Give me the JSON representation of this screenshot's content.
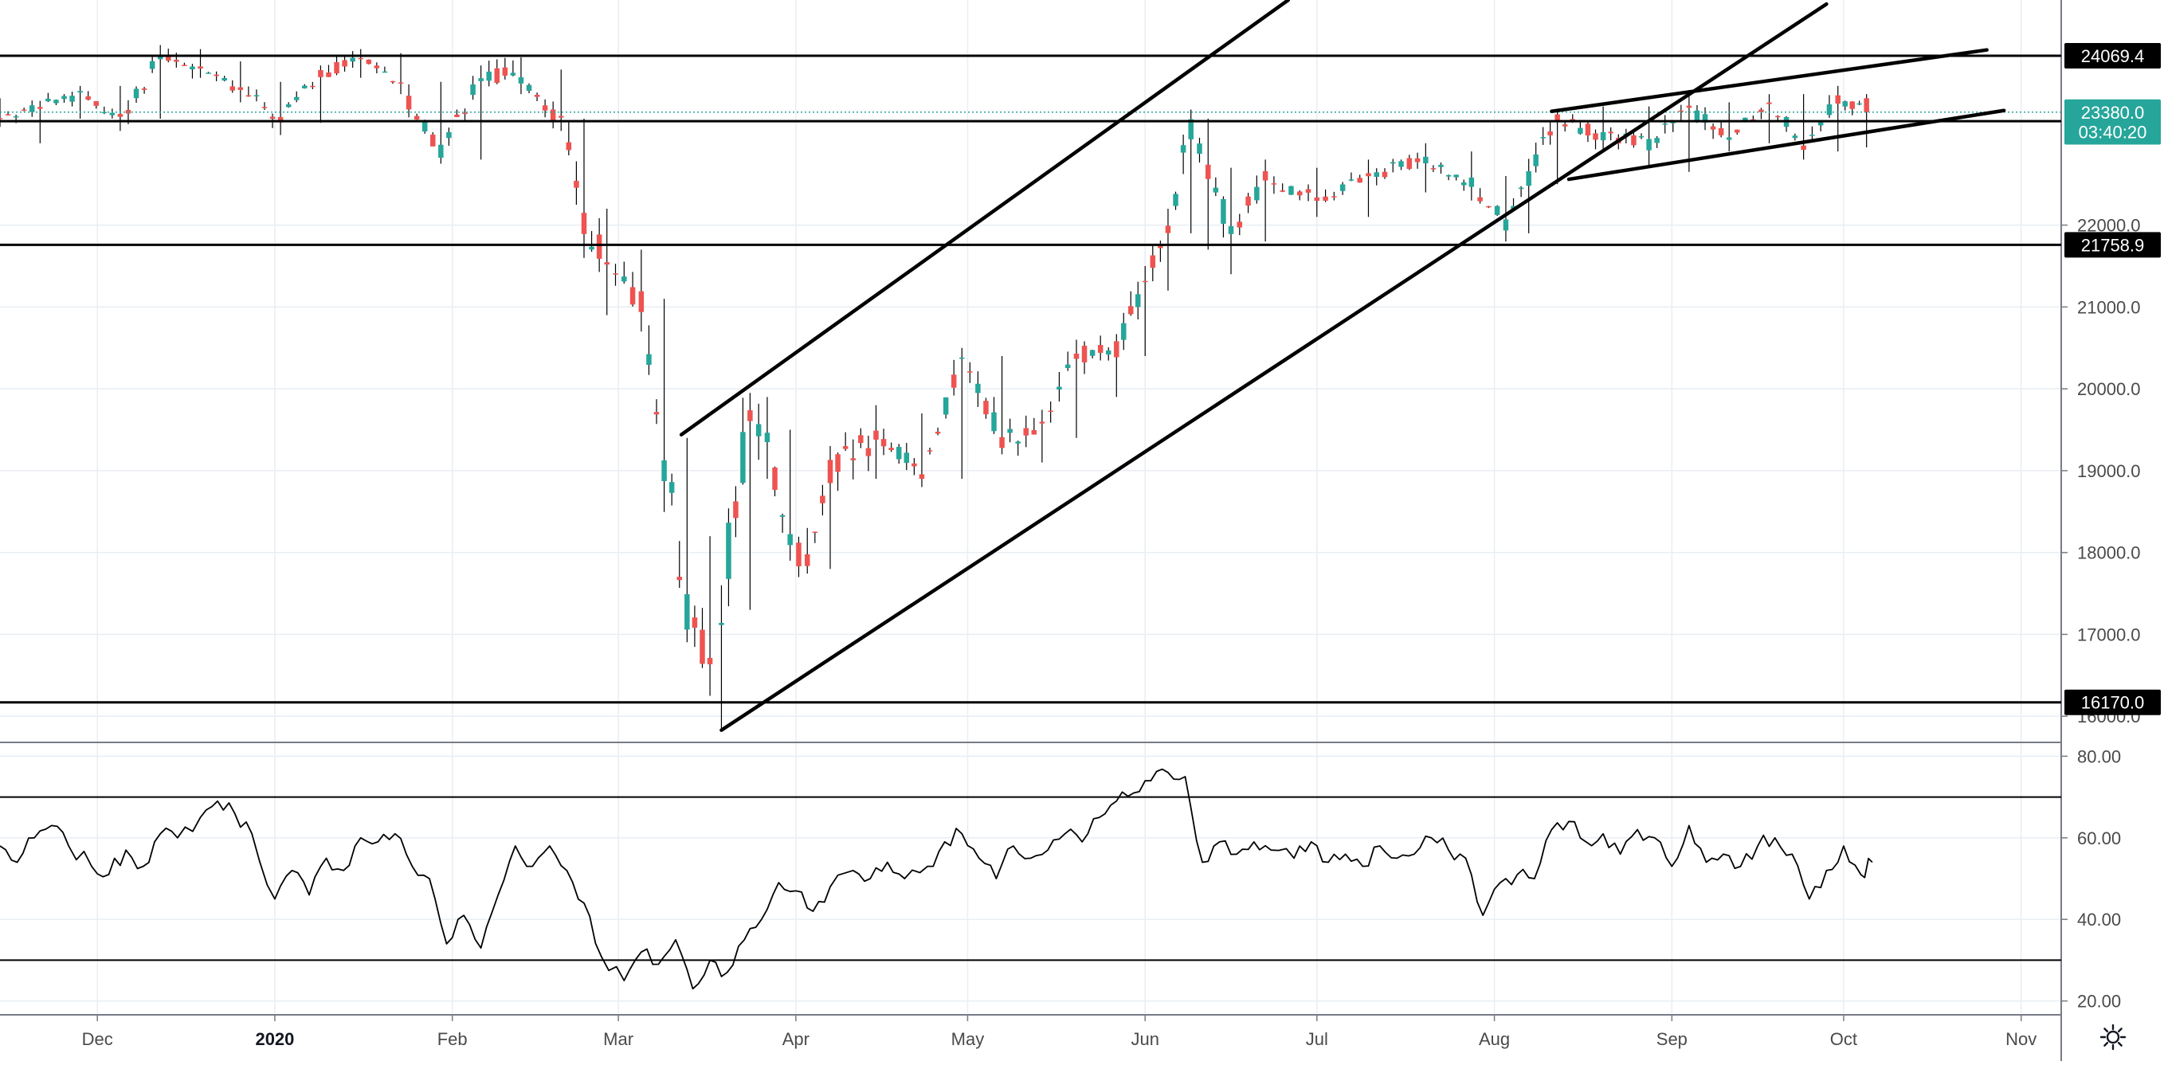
{
  "chart_data": [
    {
      "type": "candlestick",
      "x_range": [
        "2019-11-14",
        "2020-11-08"
      ],
      "ylim": [
        15700,
        24750
      ],
      "y_ticks": [
        "16000.0",
        "17000.0",
        "18000.0",
        "19000.0",
        "20000.0",
        "21000.0",
        "22000.0"
      ],
      "x_ticks": [
        {
          "label": "Dec",
          "date": "2019-12-01",
          "bold": false
        },
        {
          "label": "2020",
          "date": "2020-01-01",
          "bold": true
        },
        {
          "label": "Feb",
          "date": "2020-02-01",
          "bold": false
        },
        {
          "label": "Mar",
          "date": "2020-03-01",
          "bold": false
        },
        {
          "label": "Apr",
          "date": "2020-04-01",
          "bold": false
        },
        {
          "label": "May",
          "date": "2020-05-01",
          "bold": false
        },
        {
          "label": "Jun",
          "date": "2020-06-01",
          "bold": false
        },
        {
          "label": "Jul",
          "date": "2020-07-01",
          "bold": false
        },
        {
          "label": "Aug",
          "date": "2020-08-01",
          "bold": false
        },
        {
          "label": "Sep",
          "date": "2020-09-01",
          "bold": false
        },
        {
          "label": "Oct",
          "date": "2020-10-01",
          "bold": false
        },
        {
          "label": "Nov",
          "date": "2020-11-01",
          "bold": false
        }
      ],
      "grid": true,
      "colors": {
        "up": "#26a69a",
        "down": "#ef5350",
        "level_line": "#000000",
        "current_price": "#26a69a"
      },
      "price_labels": [
        {
          "text": "24069.4",
          "value": 24069.4,
          "style": "dark"
        },
        {
          "text": "23380.0",
          "value": 23380.0,
          "style": "teal"
        },
        {
          "text": "03:40:20",
          "value": 23140,
          "style": "teal"
        },
        {
          "text": "21758.9",
          "value": 21758.9,
          "style": "dark"
        },
        {
          "text": "16170.0",
          "value": 16170.0,
          "style": "dark"
        }
      ],
      "current_price": 23380.0,
      "horizontal_levels": [
        24069.4,
        23270,
        21758.9,
        16170.0
      ],
      "trendlines": [
        {
          "from": {
            "date": "2020-03-12",
            "value": 19440
          },
          "to": {
            "date": "2020-06-26",
            "value": 24750
          }
        },
        {
          "from": {
            "date": "2020-03-19",
            "value": 15830
          },
          "to": {
            "date": "2020-09-28",
            "value": 24700
          }
        },
        {
          "from": {
            "date": "2020-08-11",
            "value": 23390
          },
          "to": {
            "date": "2020-10-26",
            "value": 24140
          }
        },
        {
          "from": {
            "date": "2020-08-14",
            "value": 22560
          },
          "to": {
            "date": "2020-10-29",
            "value": 23400
          }
        }
      ],
      "candles_ohlc_anchors": [
        [
          "2019-11-14",
          23400,
          23550,
          23200,
          23300
        ],
        [
          "2019-11-21",
          23300,
          23500,
          23000,
          23450
        ],
        [
          "2019-11-28",
          23450,
          23700,
          23300,
          23600
        ],
        [
          "2019-12-05",
          23600,
          23700,
          23150,
          23300
        ],
        [
          "2019-12-12",
          23300,
          24200,
          23300,
          24050
        ],
        [
          "2019-12-19",
          24050,
          24150,
          23800,
          23900
        ],
        [
          "2019-12-26",
          23900,
          24000,
          23500,
          23650
        ],
        [
          "2020-01-02",
          23650,
          23750,
          23100,
          23300
        ],
        [
          "2020-01-09",
          23300,
          23950,
          23250,
          23850
        ],
        [
          "2020-01-16",
          23850,
          24150,
          23800,
          24050
        ],
        [
          "2020-01-23",
          24050,
          24100,
          23600,
          23700
        ],
        [
          "2020-01-30",
          23700,
          23750,
          22750,
          22900
        ],
        [
          "2020-02-06",
          22900,
          23950,
          22800,
          23850
        ],
        [
          "2020-02-13",
          23850,
          24050,
          23600,
          23800
        ],
        [
          "2020-02-20",
          23800,
          23900,
          23150,
          23250
        ],
        [
          "2020-02-24",
          23250,
          23300,
          21900,
          22100
        ],
        [
          "2020-02-28",
          22100,
          22200,
          20900,
          21500
        ],
        [
          "2020-03-05",
          21500,
          21700,
          20700,
          21000
        ],
        [
          "2020-03-09",
          21000,
          21100,
          18700,
          19200
        ],
        [
          "2020-03-13",
          19200,
          19400,
          17000,
          17200
        ],
        [
          "2020-03-17",
          17200,
          18200,
          16250,
          16600
        ],
        [
          "2020-03-19",
          16600,
          17600,
          15850,
          17400
        ],
        [
          "2020-03-24",
          17400,
          19950,
          17300,
          19700
        ],
        [
          "2020-03-27",
          19700,
          19900,
          18900,
          19300
        ],
        [
          "2020-03-31",
          19300,
          19500,
          17900,
          18100
        ],
        [
          "2020-04-03",
          18100,
          18300,
          17750,
          17900
        ],
        [
          "2020-04-07",
          17900,
          19300,
          17800,
          19000
        ],
        [
          "2020-04-15",
          19000,
          19800,
          18900,
          19400
        ],
        [
          "2020-04-23",
          19400,
          19700,
          18800,
          19000
        ],
        [
          "2020-04-30",
          19000,
          20500,
          18900,
          20300
        ],
        [
          "2020-05-07",
          20300,
          20400,
          19200,
          19400
        ],
        [
          "2020-05-14",
          19400,
          19700,
          19100,
          19500
        ],
        [
          "2020-05-20",
          19500,
          20600,
          19400,
          20400
        ],
        [
          "2020-05-27",
          20400,
          20600,
          19900,
          20500
        ],
        [
          "2020-06-01",
          20500,
          21500,
          20400,
          21300
        ],
        [
          "2020-06-05",
          21300,
          22200,
          21200,
          22000
        ],
        [
          "2020-06-09",
          22000,
          23400,
          21900,
          23200
        ],
        [
          "2020-06-12",
          23200,
          23300,
          21700,
          22600
        ],
        [
          "2020-06-16",
          22600,
          22700,
          21400,
          21900
        ],
        [
          "2020-06-22",
          21900,
          22800,
          21800,
          22600
        ],
        [
          "2020-07-01",
          22600,
          22700,
          22100,
          22300
        ],
        [
          "2020-07-10",
          22300,
          22800,
          22100,
          22600
        ],
        [
          "2020-07-20",
          22600,
          23000,
          22400,
          22800
        ],
        [
          "2020-07-28",
          22800,
          22900,
          22300,
          22500
        ],
        [
          "2020-08-03",
          22500,
          22600,
          21800,
          22000
        ],
        [
          "2020-08-07",
          22000,
          22700,
          21900,
          22600
        ],
        [
          "2020-08-12",
          22600,
          23400,
          22500,
          23300
        ],
        [
          "2020-08-20",
          23300,
          23450,
          22900,
          23100
        ],
        [
          "2020-08-28",
          23100,
          23450,
          22700,
          23000
        ],
        [
          "2020-09-04",
          23000,
          23650,
          22650,
          23400
        ],
        [
          "2020-09-11",
          23400,
          23500,
          22900,
          23100
        ],
        [
          "2020-09-18",
          23100,
          23600,
          23000,
          23500
        ],
        [
          "2020-09-24",
          23500,
          23600,
          22800,
          23000
        ],
        [
          "2020-09-30",
          23000,
          23700,
          22900,
          23550
        ],
        [
          "2020-10-05",
          23550,
          23600,
          22950,
          23380
        ]
      ]
    },
    {
      "type": "line",
      "name": "",
      "ylim": [
        17,
        83
      ],
      "y_ticks": [
        "20.00",
        "40.00",
        "60.00",
        "80.00"
      ],
      "levels": [
        70,
        30
      ],
      "anchors": [
        [
          "2019-11-14",
          58
        ],
        [
          "2019-11-17",
          54
        ],
        [
          "2019-11-20",
          60
        ],
        [
          "2019-11-23",
          63
        ],
        [
          "2019-11-26",
          58
        ],
        [
          "2019-11-30",
          53
        ],
        [
          "2019-12-03",
          51
        ],
        [
          "2019-12-06",
          57
        ],
        [
          "2019-12-09",
          53
        ],
        [
          "2019-12-12",
          61
        ],
        [
          "2019-12-15",
          60
        ],
        [
          "2019-12-19",
          65
        ],
        [
          "2019-12-22",
          69
        ],
        [
          "2019-12-25",
          66
        ],
        [
          "2019-12-28",
          61
        ],
        [
          "2020-01-01",
          45
        ],
        [
          "2020-01-04",
          52
        ],
        [
          "2020-01-07",
          46
        ],
        [
          "2020-01-10",
          55
        ],
        [
          "2020-01-13",
          52
        ],
        [
          "2020-01-16",
          60
        ],
        [
          "2020-01-19",
          59
        ],
        [
          "2020-01-22",
          61
        ],
        [
          "2020-01-25",
          53
        ],
        [
          "2020-01-28",
          50
        ],
        [
          "2020-01-31",
          34
        ],
        [
          "2020-02-03",
          41
        ],
        [
          "2020-02-06",
          33
        ],
        [
          "2020-02-09",
          46
        ],
        [
          "2020-02-12",
          58
        ],
        [
          "2020-02-15",
          53
        ],
        [
          "2020-02-18",
          58
        ],
        [
          "2020-02-21",
          52
        ],
        [
          "2020-02-24",
          44
        ],
        [
          "2020-02-27",
          31
        ],
        [
          "2020-03-02",
          25
        ],
        [
          "2020-03-05",
          32
        ],
        [
          "2020-03-08",
          29
        ],
        [
          "2020-03-11",
          35
        ],
        [
          "2020-03-14",
          23
        ],
        [
          "2020-03-17",
          30
        ],
        [
          "2020-03-20",
          27
        ],
        [
          "2020-03-23",
          35
        ],
        [
          "2020-03-26",
          40
        ],
        [
          "2020-03-29",
          49
        ],
        [
          "2020-04-01",
          47
        ],
        [
          "2020-04-04",
          42
        ],
        [
          "2020-04-07",
          48
        ],
        [
          "2020-04-11",
          52
        ],
        [
          "2020-04-14",
          50
        ],
        [
          "2020-04-17",
          54
        ],
        [
          "2020-04-20",
          50
        ],
        [
          "2020-04-24",
          53
        ],
        [
          "2020-04-27",
          59
        ],
        [
          "2020-04-30",
          61
        ],
        [
          "2020-05-03",
          55
        ],
        [
          "2020-05-06",
          50
        ],
        [
          "2020-05-09",
          58
        ],
        [
          "2020-05-12",
          55
        ],
        [
          "2020-05-15",
          57
        ],
        [
          "2020-05-18",
          61
        ],
        [
          "2020-05-21",
          59
        ],
        [
          "2020-05-24",
          65
        ],
        [
          "2020-05-27",
          69
        ],
        [
          "2020-05-30",
          71
        ],
        [
          "2020-06-02",
          74
        ],
        [
          "2020-06-05",
          76
        ],
        [
          "2020-06-08",
          75
        ],
        [
          "2020-06-11",
          54
        ],
        [
          "2020-06-14",
          59
        ],
        [
          "2020-06-17",
          56
        ],
        [
          "2020-06-20",
          59
        ],
        [
          "2020-06-23",
          57
        ],
        [
          "2020-06-27",
          55
        ],
        [
          "2020-06-30",
          59
        ],
        [
          "2020-07-03",
          54
        ],
        [
          "2020-07-06",
          56
        ],
        [
          "2020-07-09",
          53
        ],
        [
          "2020-07-12",
          58
        ],
        [
          "2020-07-15",
          55
        ],
        [
          "2020-07-18",
          56
        ],
        [
          "2020-07-21",
          60
        ],
        [
          "2020-07-24",
          57
        ],
        [
          "2020-07-27",
          55
        ],
        [
          "2020-07-30",
          41
        ],
        [
          "2020-08-02",
          49
        ],
        [
          "2020-08-05",
          51
        ],
        [
          "2020-08-08",
          50
        ],
        [
          "2020-08-11",
          62
        ],
        [
          "2020-08-14",
          64
        ],
        [
          "2020-08-17",
          59
        ],
        [
          "2020-08-20",
          61
        ],
        [
          "2020-08-23",
          56
        ],
        [
          "2020-08-26",
          62
        ],
        [
          "2020-08-29",
          60
        ],
        [
          "2020-09-01",
          53
        ],
        [
          "2020-09-04",
          63
        ],
        [
          "2020-09-07",
          54
        ],
        [
          "2020-09-10",
          56
        ],
        [
          "2020-09-13",
          53
        ],
        [
          "2020-09-16",
          58
        ],
        [
          "2020-09-19",
          60
        ],
        [
          "2020-09-22",
          56
        ],
        [
          "2020-09-25",
          45
        ],
        [
          "2020-09-28",
          52
        ],
        [
          "2020-10-01",
          58
        ],
        [
          "2020-10-04",
          51
        ],
        [
          "2020-10-06",
          54
        ]
      ]
    }
  ],
  "ui": {
    "settings_icon": "gear-icon"
  }
}
